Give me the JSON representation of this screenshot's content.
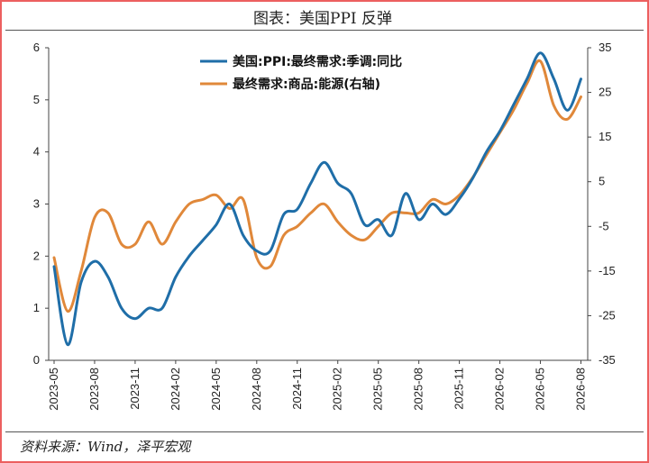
{
  "title": "图表：美国PPI 反弹",
  "source": "资料来源：Wind，泽平宏观",
  "colors": {
    "frame": "#ec5f5f",
    "series_ppi": "#1f6ea8",
    "series_energy": "#e0883a",
    "axis": "#444444"
  },
  "chart_data": {
    "type": "line",
    "x_ticks": [
      "2023-05",
      "2023-08",
      "2023-11",
      "2024-02",
      "2024-05",
      "2024-08",
      "2024-11",
      "2025-02",
      "2025-05",
      "2025-08",
      "2025-11",
      "2026-02",
      "2026-05",
      "2026-08"
    ],
    "y_left": {
      "min": 0,
      "max": 6,
      "ticks": [
        "0",
        "1",
        "2",
        "3",
        "4",
        "5",
        "6"
      ]
    },
    "y_right": {
      "min": -35,
      "max": 35,
      "ticks": [
        "-35",
        "-25",
        "-15",
        "-5",
        "5",
        "15",
        "25",
        "35"
      ]
    },
    "grid": false,
    "legend_position": "top-center",
    "series": [
      {
        "name": "美国:PPI:最终需求:季调:同比",
        "axis": "left",
        "x": [
          "2023-05",
          "2023-06",
          "2023-07",
          "2023-08",
          "2023-09",
          "2023-10",
          "2023-11",
          "2023-12",
          "2024-01",
          "2024-02",
          "2024-03",
          "2024-04",
          "2024-05",
          "2024-06",
          "2024-07",
          "2024-08",
          "2024-09",
          "2024-10",
          "2024-11",
          "2024-12",
          "2025-01",
          "2025-02",
          "2025-03",
          "2025-04",
          "2025-05",
          "2025-06",
          "2025-07",
          "2025-08",
          "2025-09",
          "2025-10",
          "2025-11",
          "2025-12",
          "2026-01",
          "2026-02",
          "2026-03",
          "2026-04",
          "2026-05",
          "2026-06",
          "2026-07",
          "2026-08"
        ],
        "values": [
          1.8,
          0.3,
          1.5,
          1.9,
          1.6,
          1.0,
          0.8,
          1.0,
          1.0,
          1.6,
          2.0,
          2.3,
          2.6,
          3.0,
          2.4,
          2.1,
          2.1,
          2.8,
          2.9,
          3.4,
          3.8,
          3.4,
          3.2,
          2.6,
          2.7,
          2.4,
          3.2,
          2.7,
          3.0,
          2.8,
          3.1,
          3.5,
          4.0,
          4.4,
          4.9,
          5.4,
          5.9,
          5.4,
          4.8,
          5.4
        ]
      },
      {
        "name": "最终需求:商品:能源(右轴)",
        "axis": "right",
        "x": [
          "2023-05",
          "2023-06",
          "2023-07",
          "2023-08",
          "2023-09",
          "2023-10",
          "2023-11",
          "2023-12",
          "2024-01",
          "2024-02",
          "2024-03",
          "2024-04",
          "2024-05",
          "2024-06",
          "2024-07",
          "2024-08",
          "2024-09",
          "2024-10",
          "2024-11",
          "2024-12",
          "2025-01",
          "2025-02",
          "2025-03",
          "2025-04",
          "2025-05",
          "2025-06",
          "2025-07",
          "2025-08",
          "2025-09",
          "2025-10",
          "2025-11",
          "2025-12",
          "2026-01",
          "2026-02",
          "2026-03",
          "2026-04",
          "2026-05",
          "2026-06",
          "2026-07",
          "2026-08"
        ],
        "values": [
          -12,
          -24,
          -15,
          -3,
          -2,
          -9,
          -9,
          -4,
          -9,
          -4,
          0,
          1,
          2,
          -1,
          1,
          -12,
          -14,
          -7,
          -5,
          -2,
          0,
          -4,
          -7,
          -8,
          -5,
          -2,
          -2,
          -2,
          1,
          0,
          2,
          6,
          11,
          16,
          21,
          27,
          32,
          22,
          19,
          24
        ]
      }
    ]
  }
}
